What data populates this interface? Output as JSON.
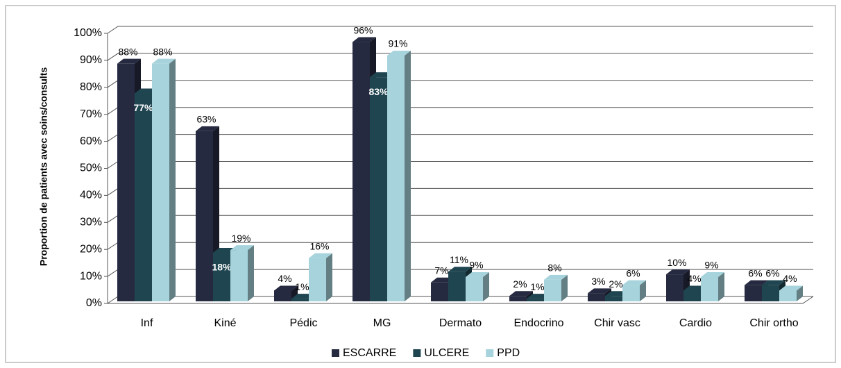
{
  "chart_data": {
    "type": "bar3d",
    "y_label": "Proportion de patients avec soins/consults",
    "categories": [
      "Inf",
      "Kiné",
      "Pédic",
      "MG",
      "Dermato",
      "Endocrino",
      "Chir vasc",
      "Cardio",
      "Chir ortho"
    ],
    "series": [
      {
        "name": "ESCARRE",
        "color": "#262a40",
        "values": [
          88,
          63,
          4,
          96,
          7,
          2,
          3,
          10,
          6
        ],
        "value_labels": [
          "88%",
          "63%",
          "4%",
          "96%",
          "7%",
          "2%",
          "3%",
          "10%",
          "6%"
        ]
      },
      {
        "name": "ULCERE",
        "color": "#1f4550",
        "values": [
          77,
          18,
          1,
          83,
          11,
          1,
          2,
          4,
          6
        ],
        "value_labels": [
          "77%",
          "18%",
          "1%",
          "83%",
          "11%",
          "1%",
          "2%",
          "4%",
          "6%"
        ]
      },
      {
        "name": "PPD",
        "color": "#a6d3dc",
        "values": [
          88,
          19,
          16,
          91,
          9,
          8,
          6,
          9,
          4
        ],
        "value_labels": [
          "88%",
          "19%",
          "16%",
          "91%",
          "9%",
          "8%",
          "6%",
          "9%",
          "4%"
        ]
      }
    ],
    "ylim": [
      0,
      100
    ],
    "yticks": [
      {
        "value": 0,
        "label": "0%"
      },
      {
        "value": 10,
        "label": "10%"
      },
      {
        "value": 20,
        "label": "20%"
      },
      {
        "value": 30,
        "label": "30%"
      },
      {
        "value": 40,
        "label": "40%"
      },
      {
        "value": 50,
        "label": "50%"
      },
      {
        "value": 60,
        "label": "60%"
      },
      {
        "value": 70,
        "label": "70%"
      },
      {
        "value": 80,
        "label": "80%"
      },
      {
        "value": 90,
        "label": "90%"
      },
      {
        "value": 100,
        "label": "100%"
      }
    ],
    "grid": true,
    "legend": "bottom"
  }
}
